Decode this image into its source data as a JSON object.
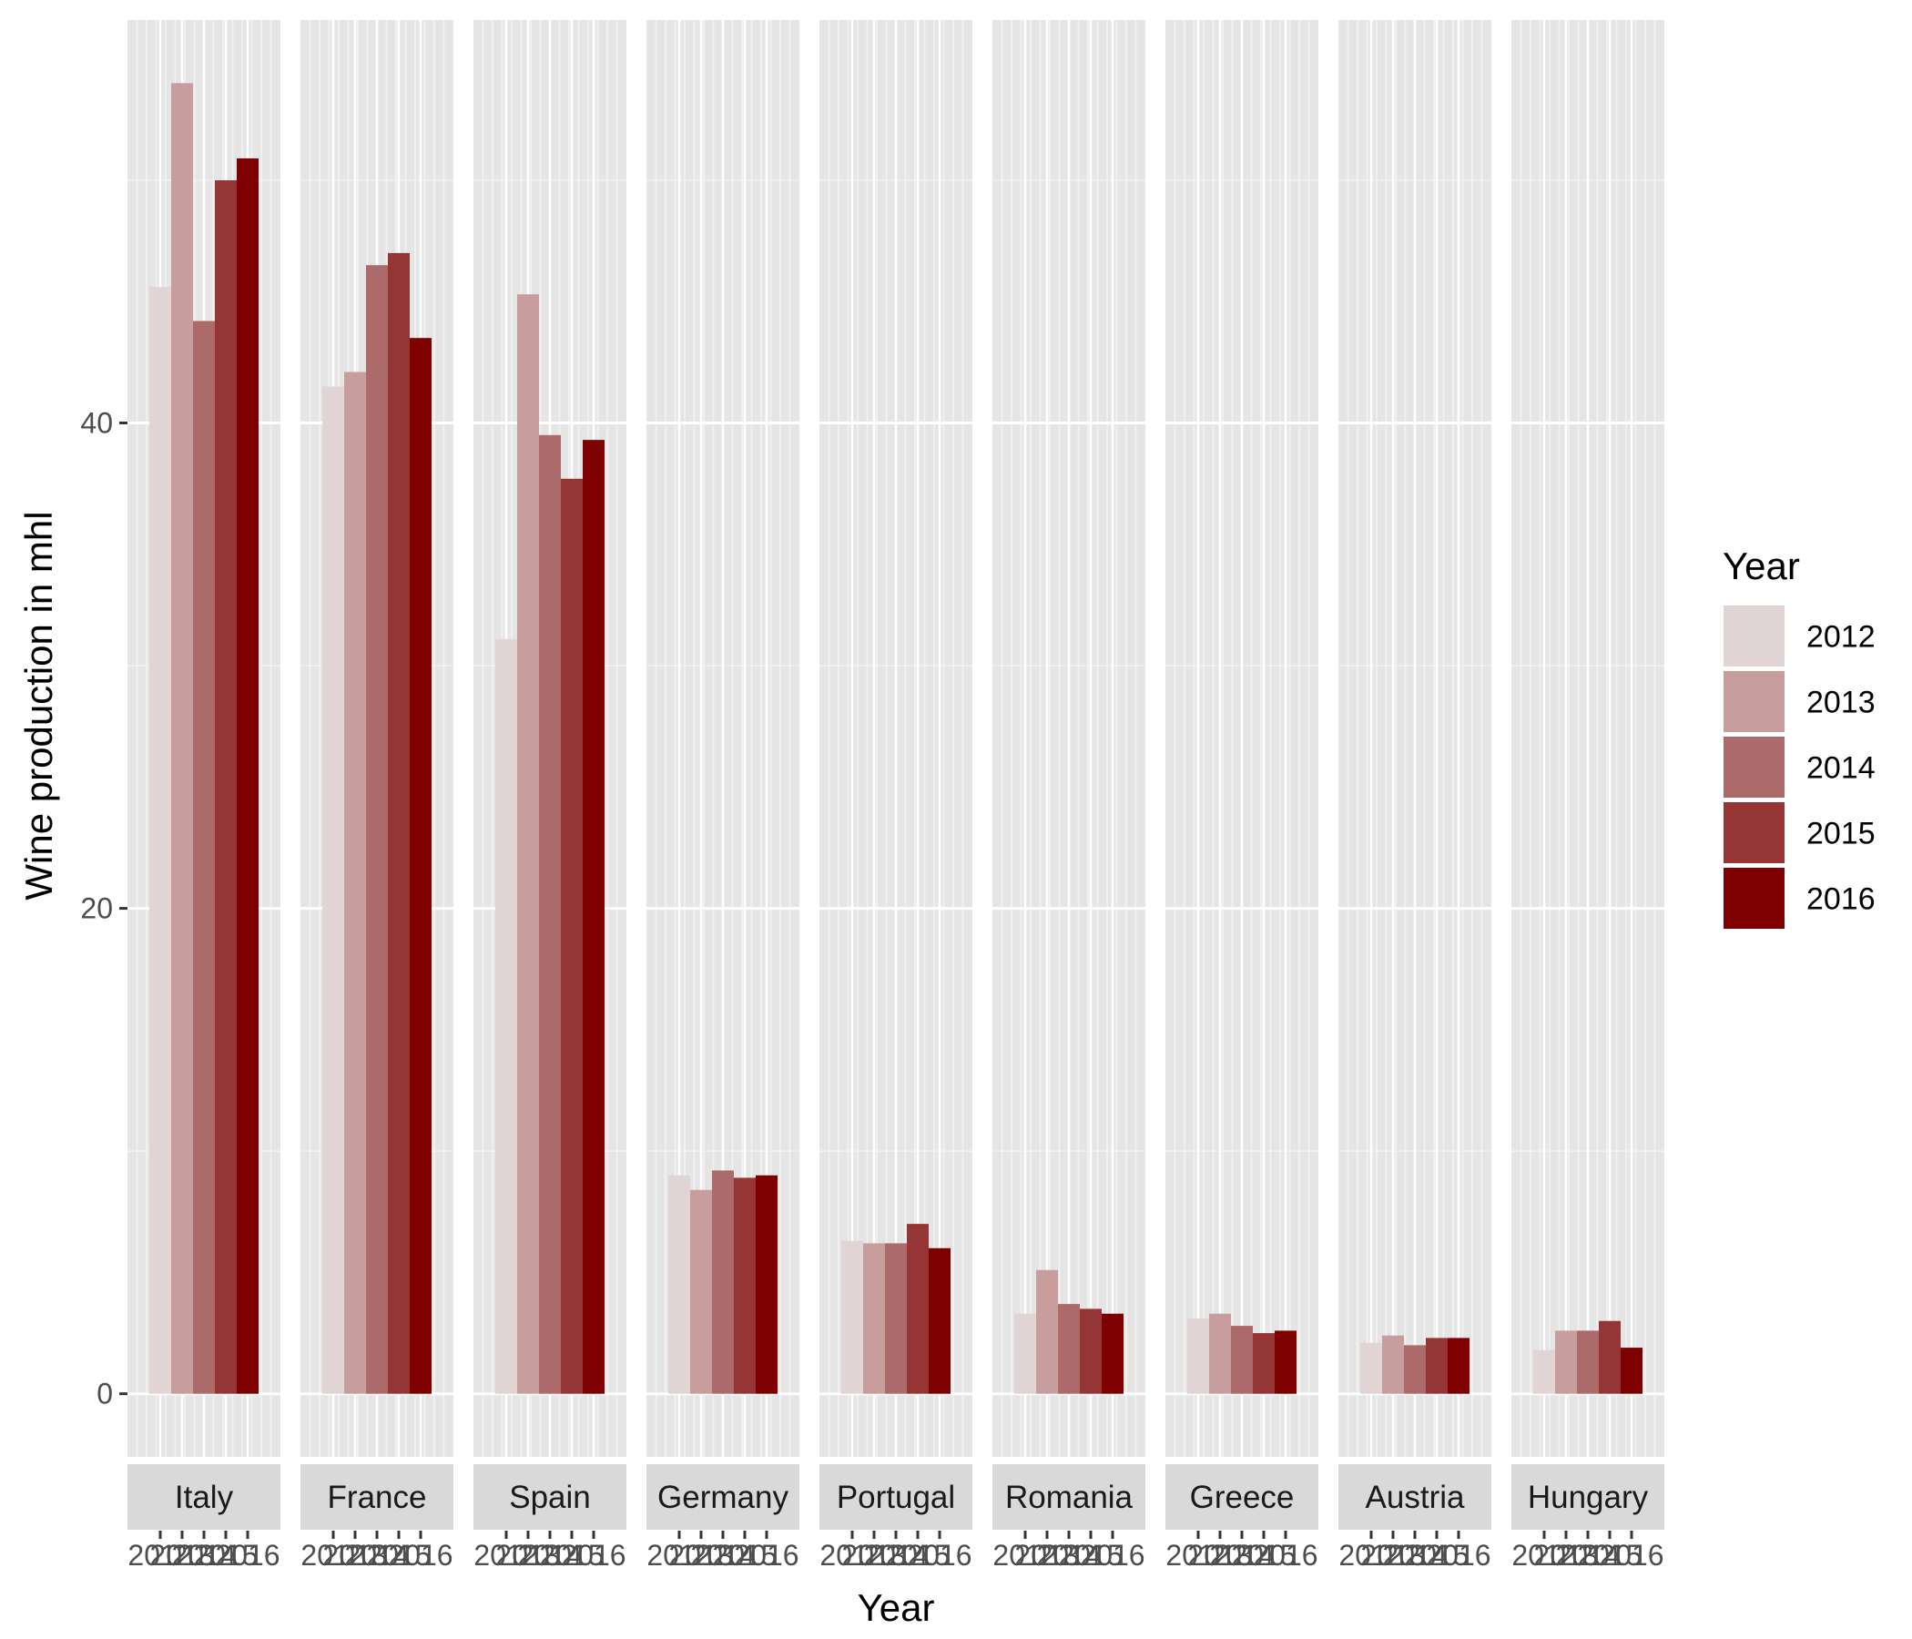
{
  "chart_data": {
    "type": "bar",
    "facet_by": "country",
    "panels": [
      "Italy",
      "France",
      "Spain",
      "Germany",
      "Portugal",
      "Romania",
      "Greece",
      "Austria",
      "Hungary"
    ],
    "categories": [
      "2012",
      "2013",
      "2014",
      "2015",
      "2016"
    ],
    "tick_labels": [
      "2012",
      "2013",
      "2014",
      "2015",
      "2016"
    ],
    "series": [
      {
        "name": "Italy",
        "values": [
          45.6,
          54.0,
          44.2,
          50.0,
          50.9
        ]
      },
      {
        "name": "France",
        "values": [
          41.5,
          42.1,
          46.5,
          47.0,
          43.5
        ]
      },
      {
        "name": "Spain",
        "values": [
          31.1,
          45.3,
          39.5,
          37.7,
          39.3
        ]
      },
      {
        "name": "Germany",
        "values": [
          9.0,
          8.4,
          9.2,
          8.9,
          9.0
        ]
      },
      {
        "name": "Portugal",
        "values": [
          6.3,
          6.2,
          6.2,
          7.0,
          6.0
        ]
      },
      {
        "name": "Romania",
        "values": [
          3.3,
          5.1,
          3.7,
          3.5,
          3.3
        ]
      },
      {
        "name": "Greece",
        "values": [
          3.1,
          3.3,
          2.8,
          2.5,
          2.6
        ]
      },
      {
        "name": "Austria",
        "values": [
          2.1,
          2.4,
          2.0,
          2.3,
          2.3
        ]
      },
      {
        "name": "Hungary",
        "values": [
          1.8,
          2.6,
          2.6,
          3.0,
          1.9
        ]
      }
    ],
    "title": "",
    "xlabel": "Year",
    "ylabel": "Wine production in mhl",
    "ylim": [
      -2.6,
      56.6
    ],
    "yticks": [
      0,
      20,
      40
    ],
    "y_tick_labels": [
      "0",
      "20",
      "40"
    ],
    "grid": true,
    "legend": {
      "title": "Year",
      "position": "right",
      "entries": [
        "2012",
        "2013",
        "2014",
        "2015",
        "2016"
      ]
    },
    "fill_colors": [
      "#e0d4d4",
      "#c89d9d",
      "#ad6a6a",
      "#963535",
      "#7f0000"
    ],
    "panel_background": "#e5e5e5",
    "strip_background": "#d9d9d9"
  }
}
